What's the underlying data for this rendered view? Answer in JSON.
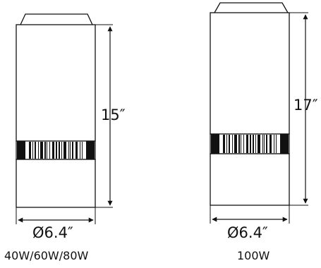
{
  "fixtures": [
    {
      "height": "15″",
      "diameter": "Ø6.4″",
      "wattage": "40W/60W/80W"
    },
    {
      "height": "17″",
      "diameter": "Ø6.4″",
      "wattage": "100W"
    }
  ]
}
